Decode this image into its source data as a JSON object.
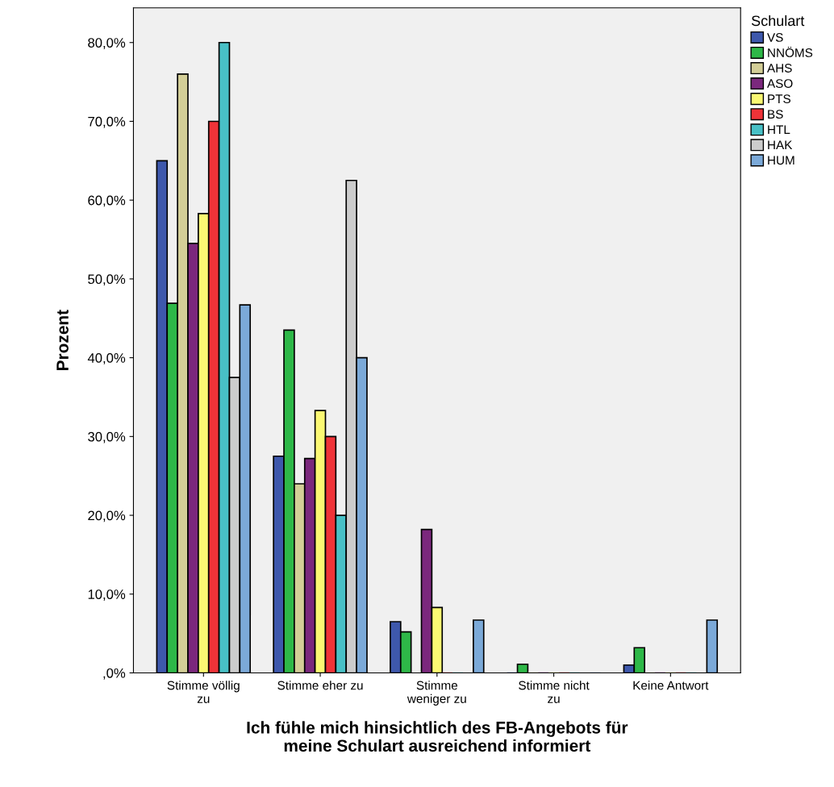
{
  "chart_data": {
    "type": "bar",
    "xlabel": "Ich fühle mich hinsichtlich des FB-Angebots für\nmeine Schulart ausreichend informiert",
    "ylabel": "Prozent",
    "legend_title": "Schulart",
    "legend": "right",
    "grid": false,
    "categories": [
      "Stimme völlig\nzu",
      "Stimme eher zu",
      "Stimme\nweniger zu",
      "Stimme nicht\nzu",
      "Keine Antwort"
    ],
    "ylim": [
      0,
      84.4
    ],
    "yticks": [
      {
        "value": 0,
        "label": ",0%"
      },
      {
        "value": 10,
        "label": "10,0%"
      },
      {
        "value": 20,
        "label": "20,0%"
      },
      {
        "value": 30,
        "label": "30,0%"
      },
      {
        "value": 40,
        "label": "40,0%"
      },
      {
        "value": 50,
        "label": "50,0%"
      },
      {
        "value": 60,
        "label": "60,0%"
      },
      {
        "value": 70,
        "label": "70,0%"
      },
      {
        "value": 80,
        "label": "80,0%"
      }
    ],
    "series": [
      {
        "name": "VS",
        "color": "#3e58ac",
        "values": [
          65.0,
          27.5,
          6.5,
          0,
          1.0
        ]
      },
      {
        "name": "NNÖMS",
        "color": "#2eb848",
        "values": [
          46.9,
          43.5,
          5.2,
          1.1,
          3.2
        ]
      },
      {
        "name": "AHS",
        "color": "#d3ce97",
        "values": [
          76.0,
          24.0,
          null,
          0,
          0
        ]
      },
      {
        "name": "ASO",
        "color": "#7b287d",
        "values": [
          54.5,
          27.2,
          18.2,
          0,
          0
        ]
      },
      {
        "name": "PTS",
        "color": "#fbf873",
        "values": [
          58.3,
          33.3,
          8.3,
          0,
          0
        ]
      },
      {
        "name": "BS",
        "color": "#ef3338",
        "values": [
          70.0,
          30.0,
          0,
          0,
          0
        ]
      },
      {
        "name": "HTL",
        "color": "#48c0c6",
        "values": [
          80.0,
          20.0,
          0,
          0,
          0
        ]
      },
      {
        "name": "HAK",
        "color": "#cccccc",
        "values": [
          37.5,
          62.5,
          0,
          0,
          0
        ]
      },
      {
        "name": "HUM",
        "color": "#7ba9d8",
        "values": [
          46.7,
          40.0,
          6.7,
          0,
          6.7
        ]
      }
    ]
  }
}
